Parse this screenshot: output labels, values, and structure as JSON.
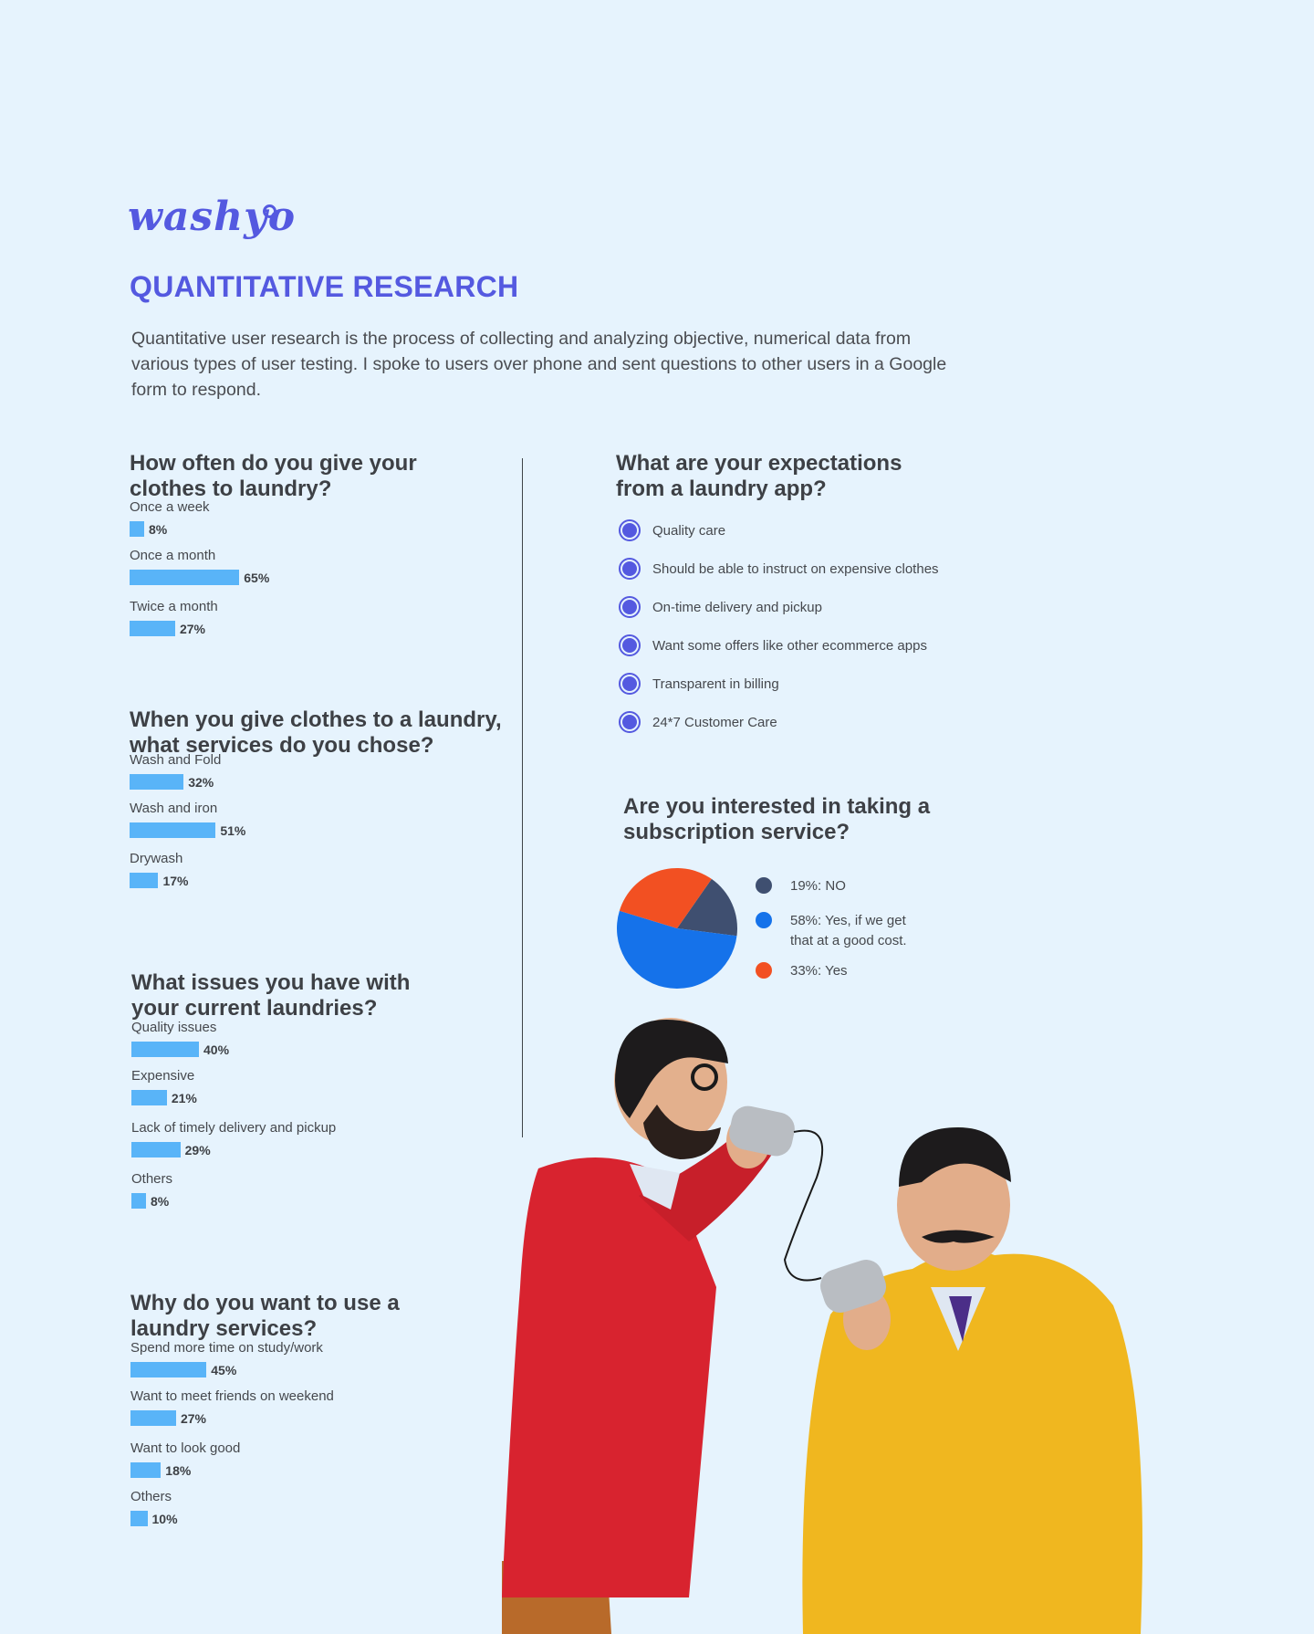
{
  "brand": {
    "logo_text": "washyo"
  },
  "title": "QUANTITATIVE RESEARCH",
  "intro": "Quantitative user research is the process of collecting and analyzing objective, numerical data from various types of user testing. I spoke to users over phone and sent questions to other users in a Google form to respond.",
  "colors": {
    "accent": "#5459e0",
    "bar": "#59b4f8",
    "background": "#e6f3fd",
    "pie_no": "#3f4f70",
    "pie_yes_cost": "#1572ea",
    "pie_yes": "#f25022"
  },
  "questions": [
    {
      "heading": "How often do you give your\nclothes to laundry?",
      "options": [
        {
          "label": "Once a week",
          "percent": 8,
          "percent_label": "8%"
        },
        {
          "label": "Once a month",
          "percent": 65,
          "percent_label": "65%"
        },
        {
          "label": "Twice a month",
          "percent": 27,
          "percent_label": "27%"
        }
      ]
    },
    {
      "heading": "When you give clothes to a laundry,\nwhat services do you chose?",
      "options": [
        {
          "label": "Wash and Fold",
          "percent": 32,
          "percent_label": "32%"
        },
        {
          "label": "Wash and iron",
          "percent": 51,
          "percent_label": "51%"
        },
        {
          "label": "Drywash",
          "percent": 17,
          "percent_label": "17%"
        }
      ]
    },
    {
      "heading": "What issues you have with\nyour current laundries?",
      "options": [
        {
          "label": "Quality issues",
          "percent": 40,
          "percent_label": "40%"
        },
        {
          "label": "Expensive",
          "percent": 21,
          "percent_label": "21%"
        },
        {
          "label": "Lack of timely delivery and pickup",
          "percent": 29,
          "percent_label": "29%"
        },
        {
          "label": "Others",
          "percent": 8,
          "percent_label": "8%"
        }
      ]
    },
    {
      "heading": "Why do you want to use a\nlaundry services?",
      "options": [
        {
          "label": "Spend more time on study/work",
          "percent": 45,
          "percent_label": "45%"
        },
        {
          "label": "Want to meet friends on weekend",
          "percent": 27,
          "percent_label": "27%"
        },
        {
          "label": "Want to look good",
          "percent": 18,
          "percent_label": "18%"
        },
        {
          "label": "Others",
          "percent": 10,
          "percent_label": "10%"
        }
      ]
    }
  ],
  "expectations": {
    "heading": "What are your expectations\nfrom a laundry app?",
    "items": [
      "Quality care",
      "Should be able to instruct on expensive clothes",
      "On-time delivery and pickup",
      "Want some offers like other ecommerce apps",
      "Transparent in billing",
      "24*7 Customer Care"
    ]
  },
  "subscription": {
    "heading": "Are you interested in taking a\nsubscription service?",
    "legend": [
      "19%: NO",
      "58%: Yes, if we get that at a good cost.",
      "33%: Yes"
    ]
  },
  "chart_data": {
    "type": "pie",
    "title": "Are you interested in taking a subscription service?",
    "labels": [
      "NO",
      "Yes, if we get that at a good cost.",
      "Yes"
    ],
    "values": [
      19,
      58,
      33
    ],
    "legend": "right"
  }
}
